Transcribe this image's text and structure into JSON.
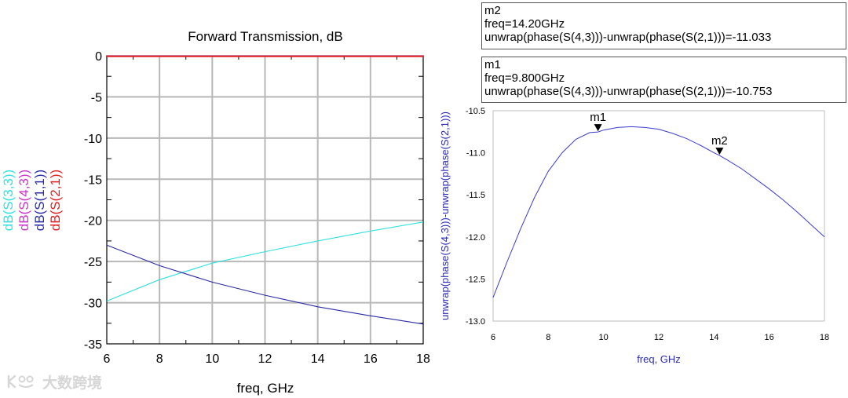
{
  "left_chart": {
    "title": "Forward Transmission, dB",
    "xlabel": "freq, GHz",
    "ylabels": [
      {
        "text": "dB(S(3,3))",
        "color": "#33e0e0"
      },
      {
        "text": "dB(S(4,3))",
        "color": "#cc33cc"
      },
      {
        "text": "dB(S(1,1))",
        "color": "#2a2aa8"
      },
      {
        "text": "dB(S(2,1))",
        "color": "#e02020"
      }
    ]
  },
  "right_chart": {
    "xlabel": "freq, GHz",
    "ylabel": "unwrap(phase(S(4,3)))-unwrap(phase(S(2,1)))",
    "markers": [
      {
        "label": "m1",
        "x": 9.8,
        "y": -10.753
      },
      {
        "label": "m2",
        "x": 14.2,
        "y": -11.033
      }
    ]
  },
  "marker_boxes": {
    "m2": {
      "name": "m2",
      "freq": "freq=14.20GHz",
      "expr": "unwrap(phase(S(4,3)))-unwrap(phase(S(2,1)))=-11.033"
    },
    "m1": {
      "name": "m1",
      "freq": "freq=9.800GHz",
      "expr": "unwrap(phase(S(4,3)))-unwrap(phase(S(2,1)))=-10.753"
    }
  },
  "watermark": "大数跨境",
  "chart_data": [
    {
      "type": "line",
      "title": "Forward Transmission, dB",
      "xlabel": "freq, GHz",
      "ylabel": "",
      "xlim": [
        6,
        18
      ],
      "ylim": [
        -35,
        0
      ],
      "xticks": [
        6,
        8,
        10,
        12,
        14,
        16,
        18
      ],
      "yticks": [
        0,
        -5,
        -10,
        -15,
        -20,
        -25,
        -30,
        -35
      ],
      "grid": true,
      "series": [
        {
          "name": "dB(S(3,3))",
          "color": "#33e0e0",
          "x": [
            6,
            8,
            10,
            12,
            14,
            16,
            18
          ],
          "y": [
            -29.8,
            -27.2,
            -25.2,
            -23.8,
            -22.5,
            -21.3,
            -20.2
          ]
        },
        {
          "name": "dB(S(4,3))",
          "color": "#cc33cc",
          "x": [
            6,
            18
          ],
          "y": [
            -0.05,
            -0.05
          ]
        },
        {
          "name": "dB(S(1,1))",
          "color": "#2a2aa8",
          "x": [
            6,
            8,
            10,
            12,
            14,
            16,
            18
          ],
          "y": [
            -23.0,
            -25.5,
            -27.5,
            -29.1,
            -30.5,
            -31.6,
            -32.6
          ]
        },
        {
          "name": "dB(S(2,1))",
          "color": "#e02020",
          "x": [
            6,
            18
          ],
          "y": [
            -0.08,
            -0.08
          ]
        }
      ]
    },
    {
      "type": "line",
      "title": "",
      "xlabel": "freq, GHz",
      "ylabel": "unwrap(phase(S(4,3)))-unwrap(phase(S(2,1)))",
      "xlim": [
        6,
        18
      ],
      "ylim": [
        -13.0,
        -10.5
      ],
      "xticks": [
        6,
        8,
        10,
        12,
        14,
        16,
        18
      ],
      "yticks": [
        -10.5,
        -11.0,
        -11.5,
        -12.0,
        -12.5,
        -13.0
      ],
      "grid": false,
      "series": [
        {
          "color": "#3a3ad0",
          "x": [
            6,
            6.5,
            7,
            7.5,
            8,
            8.5,
            9,
            9.5,
            9.8,
            10,
            10.5,
            11,
            11.5,
            12,
            12.5,
            13,
            13.5,
            14,
            14.2,
            14.5,
            15,
            15.5,
            16,
            16.5,
            17,
            17.5,
            18
          ],
          "y": [
            -12.72,
            -12.3,
            -11.9,
            -11.53,
            -11.22,
            -11.0,
            -10.84,
            -10.76,
            -10.753,
            -10.73,
            -10.7,
            -10.69,
            -10.7,
            -10.72,
            -10.77,
            -10.83,
            -10.91,
            -11.0,
            -11.033,
            -11.09,
            -11.19,
            -11.31,
            -11.43,
            -11.56,
            -11.7,
            -11.85,
            -12.0
          ]
        }
      ]
    }
  ]
}
